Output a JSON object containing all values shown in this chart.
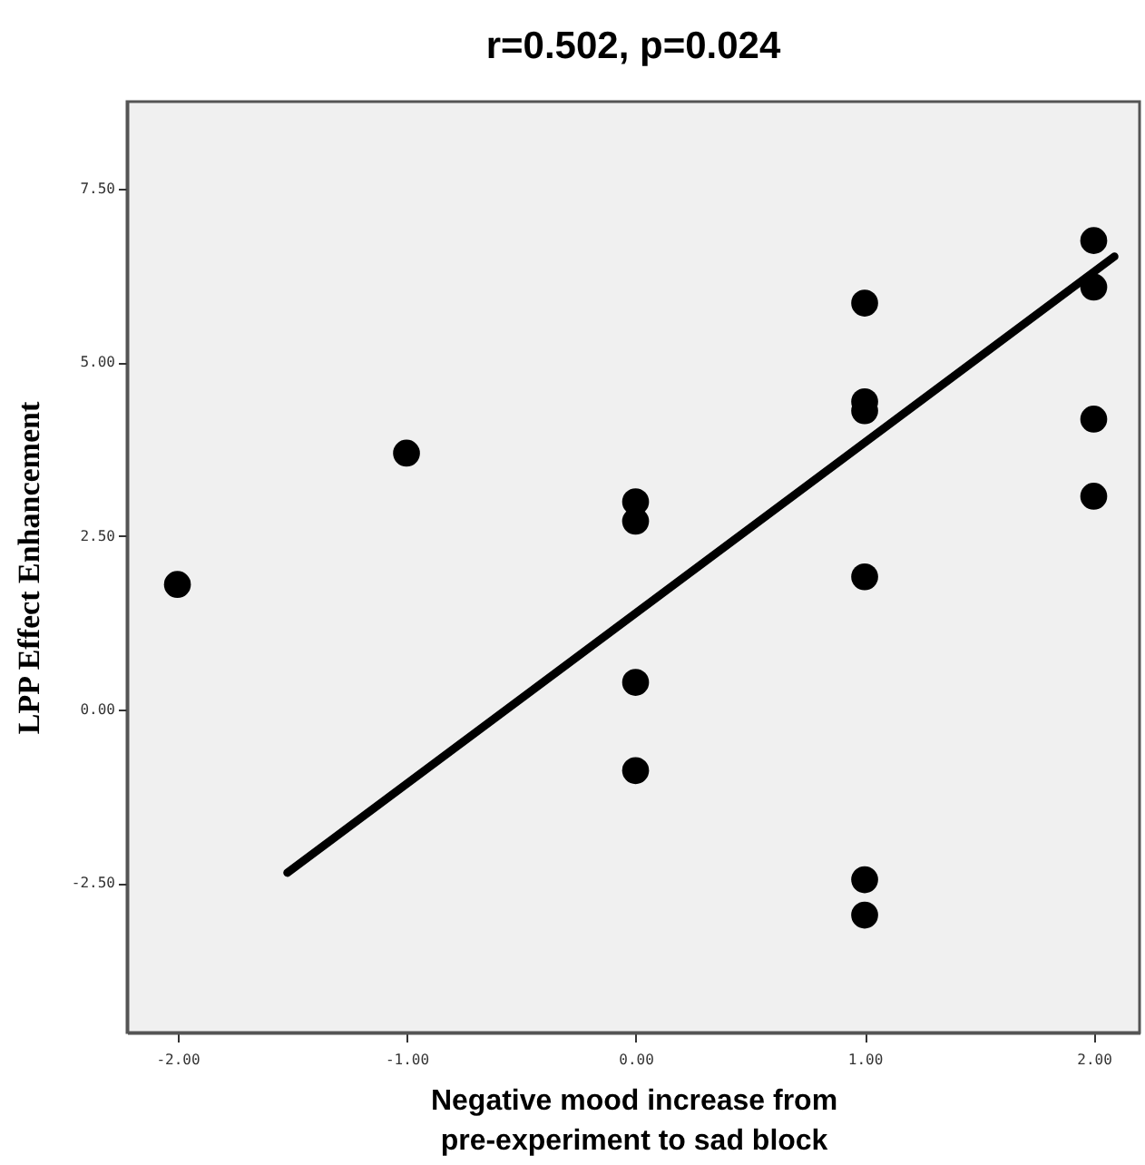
{
  "chart_data": {
    "type": "scatter",
    "title": "r=0.502, p=0.024",
    "xlabel": "Negative mood increase from\npre-experiment to sad block",
    "ylabel": "LPP Effect Enhancement",
    "xlim": [
      -2.22,
      2.2
    ],
    "xticks": [
      {
        "value": -2,
        "label": "-2.00"
      },
      {
        "value": -1,
        "label": "-1.00"
      },
      {
        "value": 0,
        "label": "0.00"
      },
      {
        "value": 1,
        "label": "1.00"
      },
      {
        "value": 2,
        "label": "2.00"
      }
    ],
    "ylim": [
      -4.65,
      8.75
    ],
    "yticks": [
      {
        "value": -2.5,
        "label": "-2.50"
      },
      {
        "value": 0,
        "label": "0.00"
      },
      {
        "value": 2.5,
        "label": "2.50"
      },
      {
        "value": 5,
        "label": "5.00"
      },
      {
        "value": 7.5,
        "label": "7.50"
      }
    ],
    "grid": false,
    "series": [
      {
        "color": "#000000",
        "marker": "circle",
        "x": [
          -2,
          -1,
          0,
          0,
          0,
          0,
          1,
          1,
          1,
          1,
          1,
          1,
          2,
          2,
          2,
          2
        ],
        "values": [
          1.8,
          3.69,
          2.99,
          2.71,
          0.39,
          -0.88,
          5.85,
          4.43,
          4.3,
          1.91,
          -2.45,
          -2.96,
          6.75,
          6.08,
          4.18,
          3.07
        ]
      },
      {
        "type": "line",
        "color": "#000000",
        "x": [
          -1.52,
          2.09
        ],
        "values": [
          -2.35,
          6.52
        ]
      }
    ]
  }
}
